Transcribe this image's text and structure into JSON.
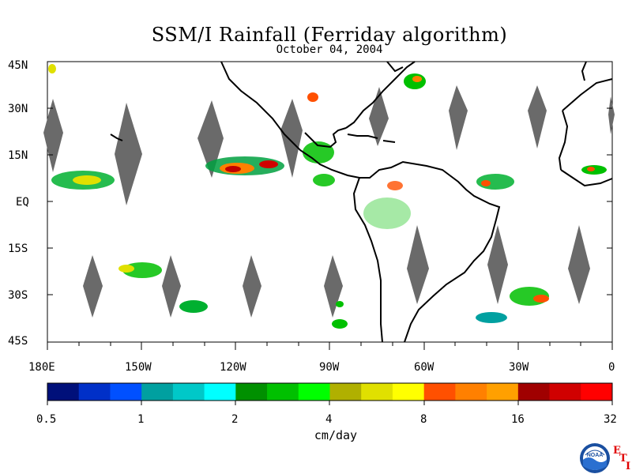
{
  "title": "SSM/I Rainfall (Ferriday algorithm)",
  "subtitle": "October 04, 2004",
  "lat_labels": [
    "45N",
    "30N",
    "15N",
    "EQ",
    "15S",
    "30S",
    "45S"
  ],
  "lon_labels": [
    "180E",
    "150W",
    "120W",
    "90W",
    "60W",
    "30W",
    "0"
  ],
  "colorbar": {
    "colors": [
      "#00107a",
      "#0030c8",
      "#0050ff",
      "#00a0a0",
      "#00c8c8",
      "#00ffff",
      "#009000",
      "#00c000",
      "#00ff00",
      "#b0b000",
      "#e0e000",
      "#ffff00",
      "#ff5000",
      "#ff8000",
      "#ffa000",
      "#a00000",
      "#d00000",
      "#ff0000"
    ],
    "tick_labels": [
      "0.5",
      "1",
      "2",
      "4",
      "8",
      "16",
      "32"
    ],
    "unit": "cm/day"
  },
  "logo": {
    "name": "noaa-logo",
    "text": "NOAA"
  },
  "corner_letters": [
    "E",
    "T",
    "I"
  ]
}
